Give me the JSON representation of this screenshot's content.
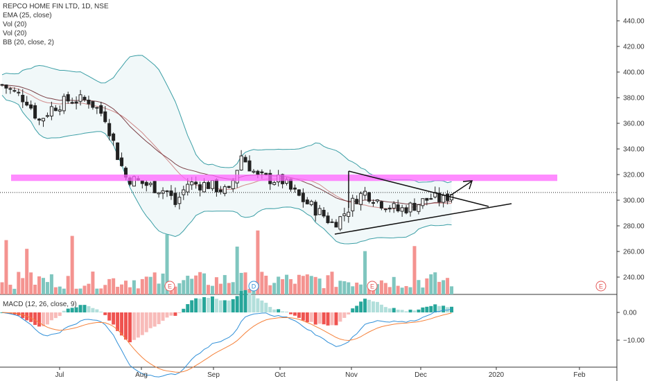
{
  "title": "REPCO HOME FIN LTD, 1D, NSE",
  "indicators": [
    "EMA (25, close)",
    "Vol (20)",
    "Vol (20)",
    "BB (20, close, 2)"
  ],
  "macd_label": "MACD (12, 26, close, 9)",
  "colors": {
    "up": "#26a69a",
    "down": "#ef5350",
    "bb": "#3a9ea5",
    "ema": "#7b3f45",
    "resistance": "#ff66ff",
    "macd_line": "#2f8fd8",
    "signal_line": "#f5813a"
  },
  "chart_data": [
    {
      "type": "candlestick",
      "title": "REPCO HOME FIN LTD, 1D, NSE",
      "y_ticks": [
        "440.00",
        "420.00",
        "400.00",
        "380.00",
        "360.00",
        "340.00",
        "320.00",
        "300.00",
        "280.00",
        "260.00",
        "240.00"
      ],
      "x_ticks": [
        "Jul",
        "Aug",
        "Sep",
        "Oct",
        "Nov",
        "Dec",
        "2020",
        "Feb"
      ],
      "ylim": [
        225,
        455
      ],
      "last_price": 306,
      "resistance_zone": [
        315,
        320
      ],
      "triangle_upper": {
        "from": {
          "date": "Nov",
          "price": 322
        },
        "to_price": 296
      },
      "triangle_lower": {
        "from_price": 273,
        "to_price": 297
      },
      "event_markers": [
        {
          "label": "E",
          "date": "Aug"
        },
        {
          "label": "D",
          "date": "Sep"
        },
        {
          "label": "E",
          "date": "Nov"
        },
        {
          "label": "E",
          "date": "Feb"
        }
      ],
      "ohlc_summary": {
        "start": 390,
        "mid_low": 275,
        "end": 306
      }
    },
    {
      "type": "bar",
      "title": "Vol (20)",
      "note": "volume bars colored by candle direction"
    },
    {
      "type": "line",
      "title": "MACD (12, 26, close, 9)",
      "y_ticks": [
        "0.00",
        "−10.00"
      ],
      "ylim": [
        -17,
        5
      ]
    }
  ]
}
